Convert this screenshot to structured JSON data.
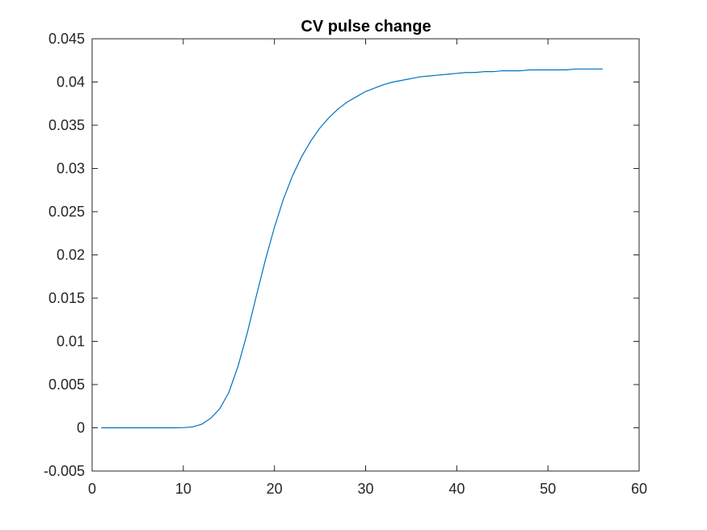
{
  "chart_data": {
    "type": "line",
    "title": "CV pulse change",
    "xlabel": "",
    "ylabel": "",
    "xlim": [
      0,
      60
    ],
    "ylim": [
      -0.005,
      0.045
    ],
    "xticks": [
      0,
      10,
      20,
      30,
      40,
      50,
      60
    ],
    "yticks": [
      -0.005,
      0,
      0.005,
      0.01,
      0.015,
      0.02,
      0.025,
      0.03,
      0.035,
      0.04,
      0.045
    ],
    "xtick_labels": [
      "0",
      "10",
      "20",
      "30",
      "40",
      "50",
      "60"
    ],
    "ytick_labels": [
      "-0.005",
      "0",
      "0.005",
      "0.01",
      "0.015",
      "0.02",
      "0.025",
      "0.03",
      "0.035",
      "0.04",
      "0.045"
    ],
    "grid": false,
    "box": true,
    "series": [
      {
        "color": "#0072BD",
        "x": [
          1,
          2,
          3,
          4,
          5,
          6,
          7,
          8,
          9,
          10,
          11,
          12,
          13,
          14,
          15,
          16,
          17,
          18,
          19,
          20,
          21,
          22,
          23,
          24,
          25,
          26,
          27,
          28,
          29,
          30,
          31,
          32,
          33,
          34,
          35,
          36,
          37,
          38,
          39,
          40,
          41,
          42,
          43,
          44,
          45,
          46,
          47,
          48,
          49,
          50,
          51,
          52,
          53,
          54,
          55,
          56
        ],
        "y": [
          0,
          0,
          0,
          0,
          0,
          0,
          0,
          0,
          0,
          2e-05,
          0.0001,
          0.0004,
          0.0011,
          0.0022,
          0.0041,
          0.0071,
          0.0109,
          0.0152,
          0.0194,
          0.0232,
          0.0265,
          0.0292,
          0.0314,
          0.0332,
          0.0347,
          0.0359,
          0.0369,
          0.0377,
          0.0383,
          0.0389,
          0.0393,
          0.0397,
          0.04,
          0.0402,
          0.0404,
          0.0406,
          0.0407,
          0.0408,
          0.0409,
          0.041,
          0.0411,
          0.0411,
          0.0412,
          0.0412,
          0.0413,
          0.0413,
          0.0413,
          0.0414,
          0.0414,
          0.0414,
          0.0414,
          0.0414,
          0.0415,
          0.0415,
          0.0415,
          0.0415
        ]
      }
    ]
  }
}
